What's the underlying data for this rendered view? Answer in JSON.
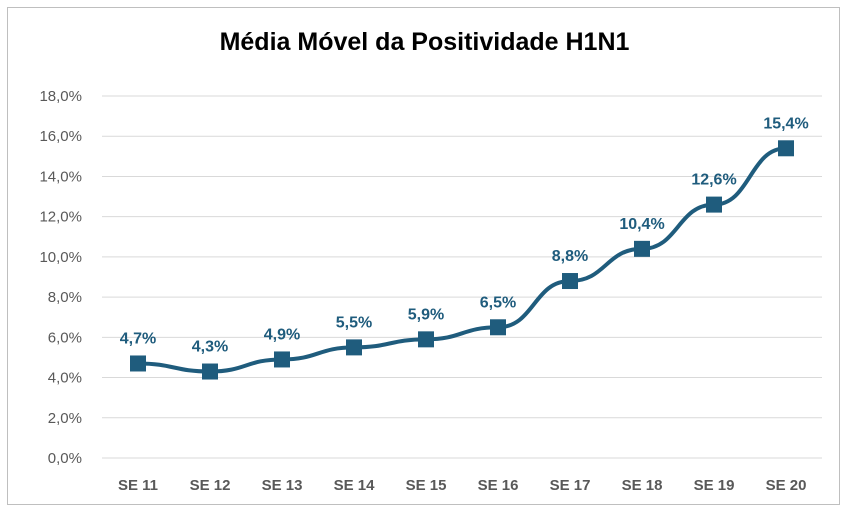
{
  "chart_data": {
    "type": "line",
    "title": "Média Móvel da Positividade H1N1",
    "xlabel": "",
    "ylabel": "",
    "categories": [
      "SE 11",
      "SE 12",
      "SE 13",
      "SE 14",
      "SE 15",
      "SE 16",
      "SE 17",
      "SE 18",
      "SE 19",
      "SE 20"
    ],
    "series": [
      {
        "values": [
          4.7,
          4.3,
          4.9,
          5.5,
          5.9,
          6.5,
          8.8,
          10.4,
          12.6,
          15.4
        ],
        "labels": [
          "4,7%",
          "4,3%",
          "4,9%",
          "5,5%",
          "5,9%",
          "6,5%",
          "8,8%",
          "10,4%",
          "12,6%",
          "15,4%"
        ]
      }
    ],
    "ylim": [
      0,
      18
    ],
    "yticks": [
      "0,0%",
      "2,0%",
      "4,0%",
      "6,0%",
      "8,0%",
      "10,0%",
      "12,0%",
      "14,0%",
      "16,0%",
      "18,0%"
    ],
    "grid": true,
    "legend": "none",
    "colors": {
      "series": "#1f5c7d",
      "label": "#1f5c7d",
      "grid": "#d9d9d9"
    }
  }
}
